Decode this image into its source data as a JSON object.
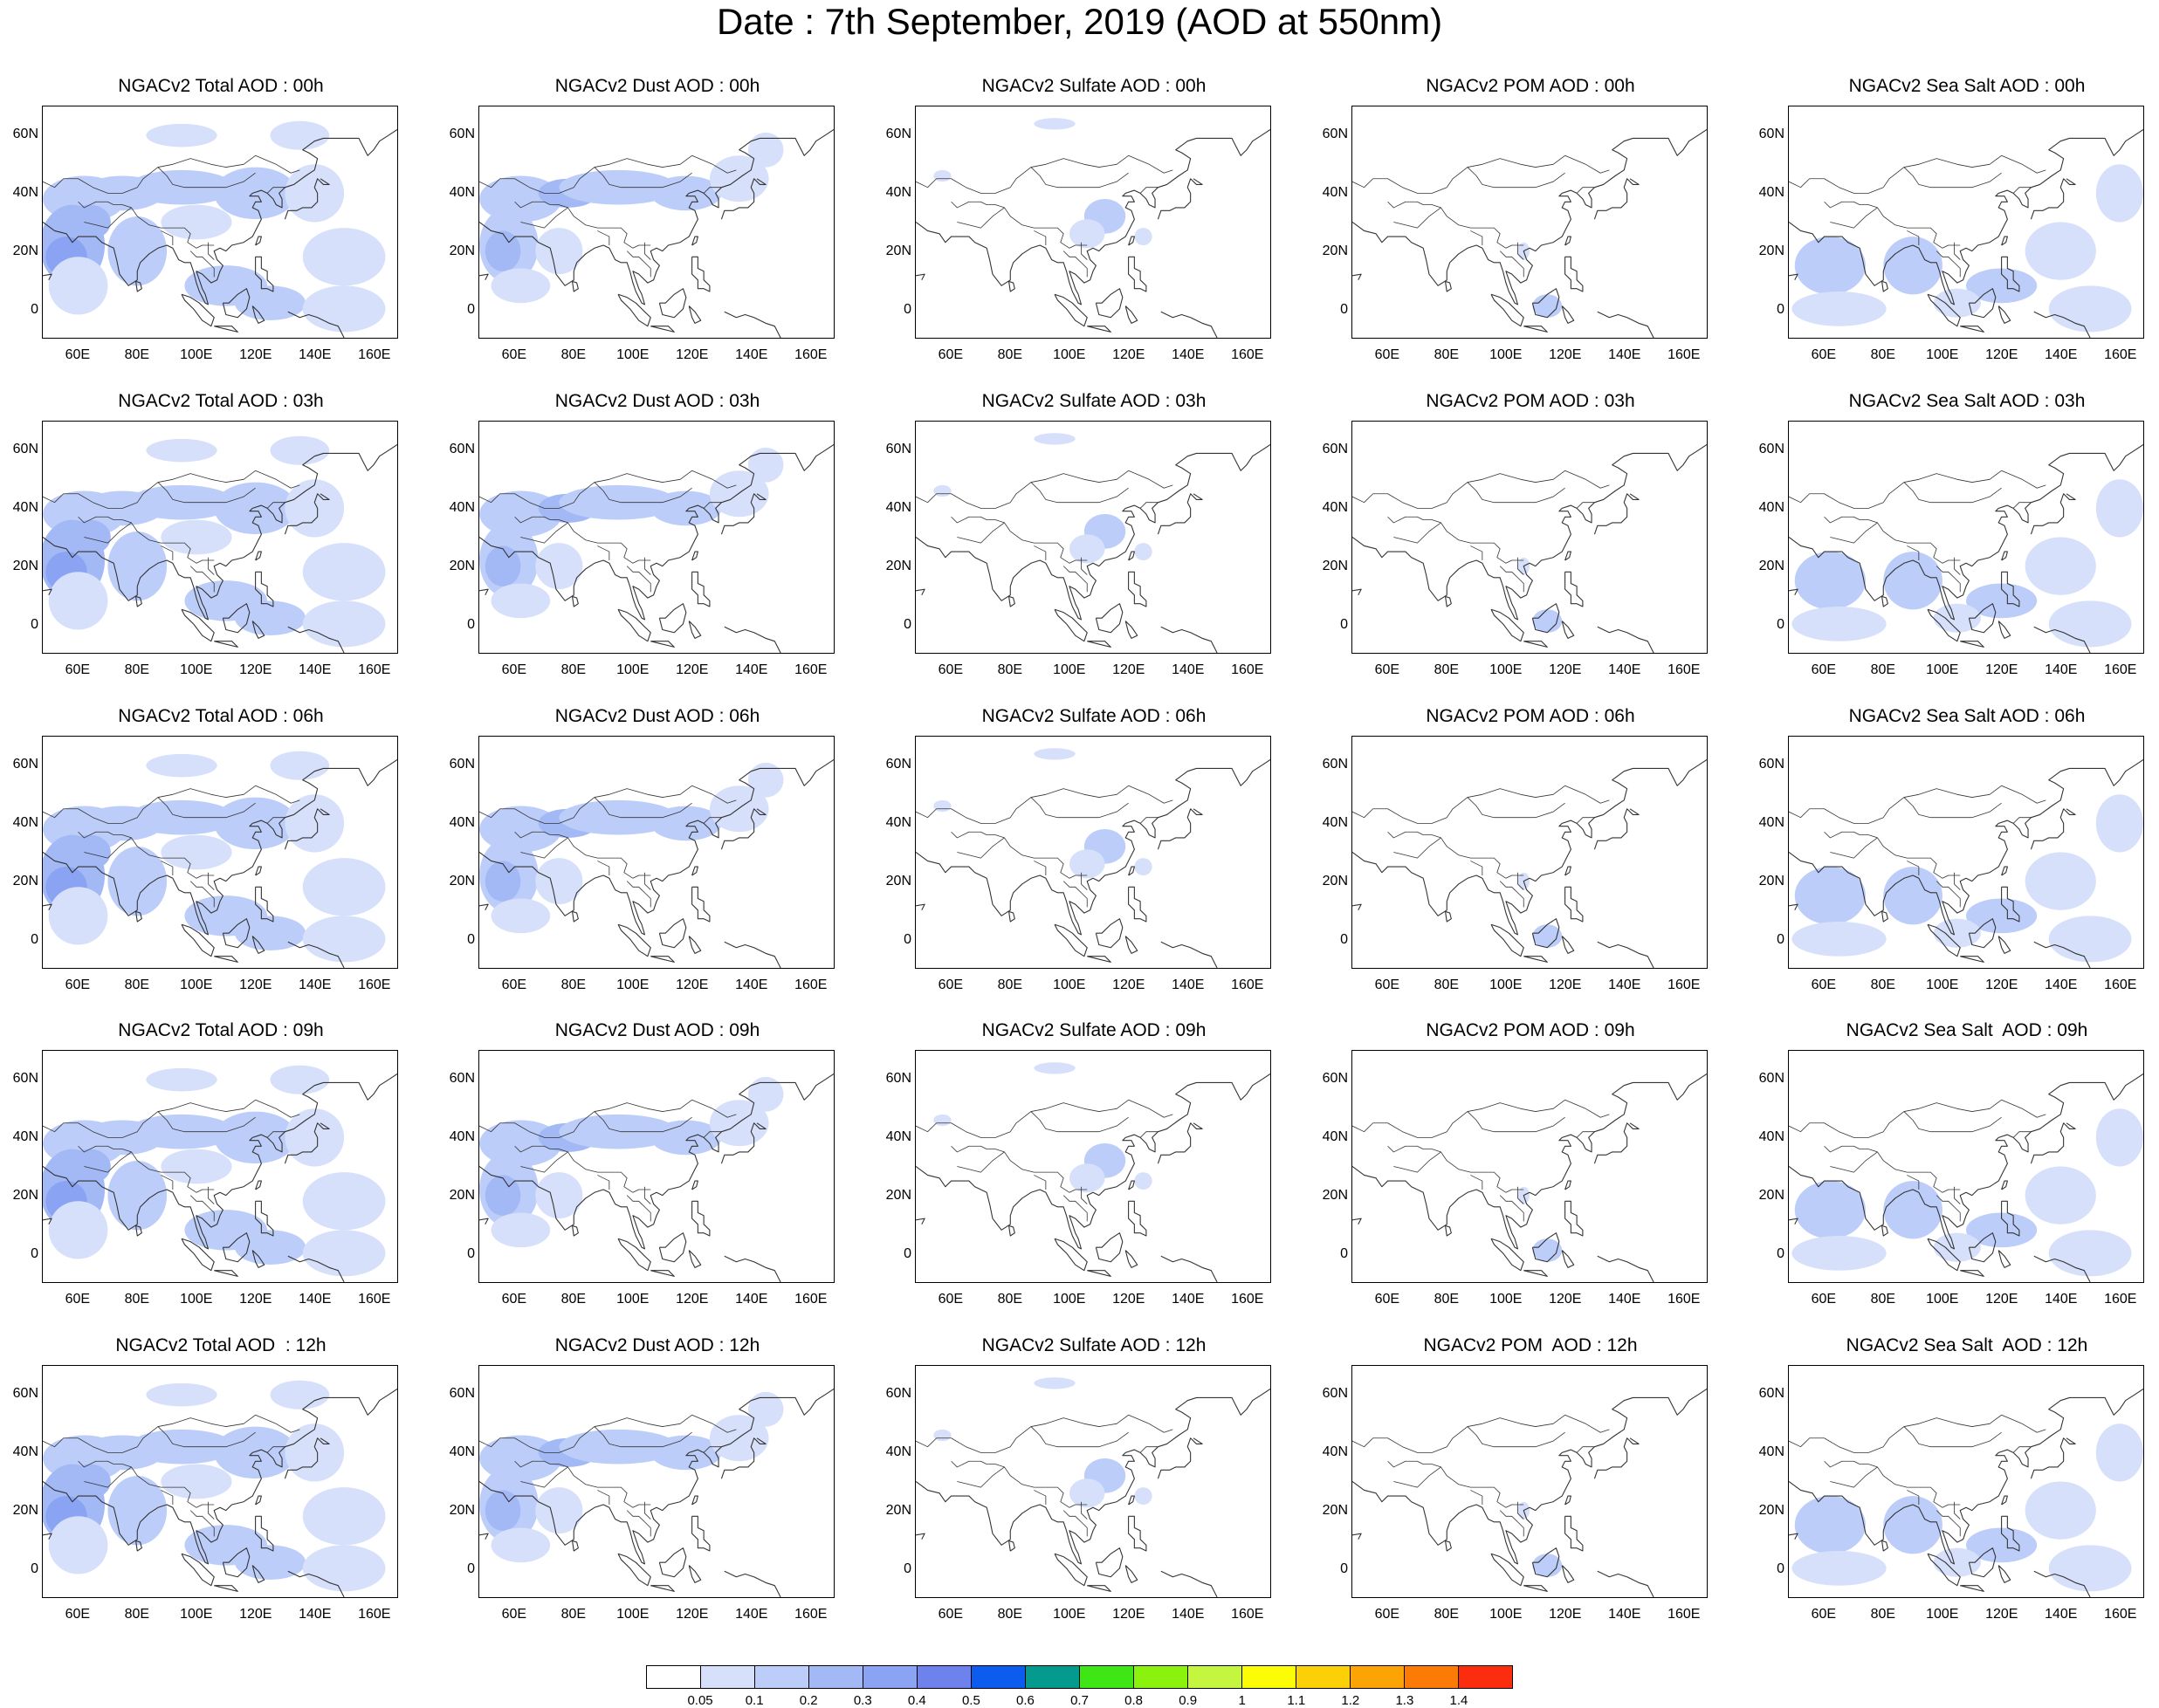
{
  "title": "Date : 7th September, 2019 (AOD at 550nm)",
  "map": {
    "region": "Asia",
    "lon_range": [
      48,
      168
    ],
    "lat_range": [
      -10,
      70
    ],
    "lat_tick_labels": [
      "60N",
      "40N",
      "20N",
      "0"
    ],
    "lon_tick_labels": [
      "60E",
      "80E",
      "100E",
      "120E",
      "140E",
      "160E"
    ]
  },
  "panels": [
    {
      "title": "NGACv2 Total AOD : 00h",
      "species": "total",
      "hour": "00h"
    },
    {
      "title": "NGACv2 Dust AOD : 00h",
      "species": "dust",
      "hour": "00h"
    },
    {
      "title": "NGACv2 Sulfate AOD : 00h",
      "species": "sulfate",
      "hour": "00h"
    },
    {
      "title": "NGACv2 POM AOD : 00h",
      "species": "pom",
      "hour": "00h"
    },
    {
      "title": "NGACv2 Sea Salt AOD : 00h",
      "species": "seasalt",
      "hour": "00h"
    },
    {
      "title": "NGACv2 Total AOD : 03h",
      "species": "total",
      "hour": "03h"
    },
    {
      "title": "NGACv2 Dust AOD : 03h",
      "species": "dust",
      "hour": "03h"
    },
    {
      "title": "NGACv2 Sulfate AOD : 03h",
      "species": "sulfate",
      "hour": "03h"
    },
    {
      "title": "NGACv2 POM AOD : 03h",
      "species": "pom",
      "hour": "03h"
    },
    {
      "title": "NGACv2 Sea Salt AOD : 03h",
      "species": "seasalt",
      "hour": "03h"
    },
    {
      "title": "NGACv2 Total AOD : 06h",
      "species": "total",
      "hour": "06h"
    },
    {
      "title": "NGACv2 Dust AOD : 06h",
      "species": "dust",
      "hour": "06h"
    },
    {
      "title": "NGACv2 Sulfate AOD : 06h",
      "species": "sulfate",
      "hour": "06h"
    },
    {
      "title": "NGACv2 POM AOD : 06h",
      "species": "pom",
      "hour": "06h"
    },
    {
      "title": "NGACv2 Sea Salt AOD : 06h",
      "species": "seasalt",
      "hour": "06h"
    },
    {
      "title": "NGACv2 Total AOD : 09h",
      "species": "total",
      "hour": "09h"
    },
    {
      "title": "NGACv2 Dust AOD : 09h",
      "species": "dust",
      "hour": "09h"
    },
    {
      "title": "NGACv2 Sulfate AOD : 09h",
      "species": "sulfate",
      "hour": "09h"
    },
    {
      "title": "NGACv2 POM AOD : 09h",
      "species": "pom",
      "hour": "09h"
    },
    {
      "title": "NGACv2 Sea Salt  AOD : 09h",
      "species": "seasalt",
      "hour": "09h"
    },
    {
      "title": "NGACv2 Total AOD  : 12h",
      "species": "total",
      "hour": "12h"
    },
    {
      "title": "NGACv2 Dust AOD : 12h",
      "species": "dust",
      "hour": "12h"
    },
    {
      "title": "NGACv2 Sulfate AOD : 12h",
      "species": "sulfate",
      "hour": "12h"
    },
    {
      "title": "NGACv2 POM  AOD : 12h",
      "species": "pom",
      "hour": "12h"
    },
    {
      "title": "NGACv2 Sea Salt  AOD : 12h",
      "species": "seasalt",
      "hour": "12h"
    }
  ],
  "colorbar": {
    "colors": [
      "#ffffff",
      "#d6e0fb",
      "#bccdf9",
      "#a3b9f5",
      "#8aa3f2",
      "#6d82ec",
      "#0d5cf0",
      "#059a8e",
      "#3fe615",
      "#8af20c",
      "#c5f63f",
      "#fcfc06",
      "#fcd006",
      "#fca406",
      "#fc7a06",
      "#fc2c0e"
    ],
    "labels": [
      "0.05",
      "0.1",
      "0.2",
      "0.3",
      "0.4",
      "0.5",
      "0.6",
      "0.7",
      "0.8",
      "0.9",
      "1",
      "1.1",
      "1.2",
      "1.3",
      "1.4"
    ]
  },
  "palette": {
    "light": "#d6e0fb",
    "mid": "#bccdf9",
    "dark": "#a3b9f5",
    "darker": "#8aa3f2",
    "coast": "#333333"
  }
}
